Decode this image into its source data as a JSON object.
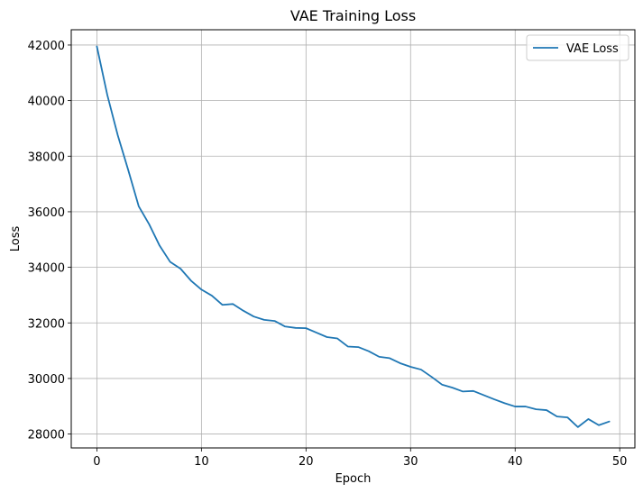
{
  "chart_data": {
    "type": "line",
    "title": "VAE Training Loss",
    "xlabel": "Epoch",
    "ylabel": "Loss",
    "xlim": [
      -2.45,
      51.45
    ],
    "ylim": [
      27500,
      42550
    ],
    "xticks": [
      0,
      10,
      20,
      30,
      40,
      50
    ],
    "yticks": [
      28000,
      30000,
      32000,
      34000,
      36000,
      38000,
      40000,
      42000
    ],
    "grid": true,
    "legend_position": "top-right",
    "series": [
      {
        "name": "VAE Loss",
        "color": "#1f77b4",
        "x": [
          0,
          1,
          2,
          3,
          4,
          5,
          6,
          7,
          8,
          9,
          10,
          11,
          12,
          13,
          14,
          15,
          16,
          17,
          18,
          19,
          20,
          21,
          22,
          23,
          24,
          25,
          26,
          27,
          28,
          29,
          30,
          31,
          32,
          33,
          34,
          35,
          36,
          37,
          38,
          39,
          40,
          41,
          42,
          43,
          44,
          45,
          46,
          47,
          48,
          49
        ],
        "values": [
          41950,
          40200,
          38750,
          37500,
          36200,
          35550,
          34780,
          34200,
          33950,
          33520,
          33200,
          32980,
          32650,
          32680,
          32440,
          32230,
          32110,
          32070,
          31870,
          31820,
          31810,
          31650,
          31490,
          31440,
          31150,
          31130,
          30980,
          30780,
          30730,
          30550,
          30420,
          30320,
          30060,
          29780,
          29670,
          29530,
          29550,
          29400,
          29250,
          29110,
          28990,
          28990,
          28890,
          28860,
          28630,
          28600,
          28250,
          28540,
          28320,
          28450
        ]
      }
    ]
  }
}
